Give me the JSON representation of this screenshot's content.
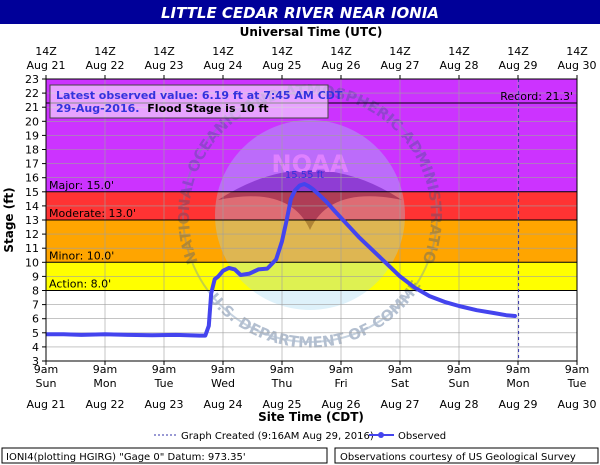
{
  "header": {
    "title": "LITTLE CEDAR RIVER NEAR IONIA",
    "utc_label": "Universal Time (UTC)",
    "bg_color": "#000099",
    "title_color": "#ffffff"
  },
  "info_box": {
    "line1": "Latest observed value: 6.19 ft at 7:45 AM CDT",
    "line2_date": "29-Aug-2016.",
    "line2_rest": "Flood Stage is 10 ft"
  },
  "watermark": {
    "ring_text": "NATIONAL OCEANIC AND ATMOSPHERIC ADMINISTRATION",
    "bottom_text": "U.S. DEPARTMENT OF COMMERCE",
    "center_text": "NOAA"
  },
  "footer": {
    "site_time_label": "Site Time (CDT)",
    "legend_graph_created": "Graph Created (9:16AM Aug 29, 2016)",
    "legend_observed": "Observed",
    "gauge_info": "IONI4(plotting HGIRG) \"Gage 0\" Datum: 973.35'",
    "courtesy": "Observations courtesy of US Geological Survey"
  },
  "chart_data": {
    "type": "line",
    "ylabel": "Stage (ft)",
    "ylim": [
      3,
      23
    ],
    "yticks": [
      "3",
      "4",
      "5",
      "6",
      "7",
      "8",
      "9",
      "10",
      "11",
      "12",
      "13",
      "14",
      "15",
      "16",
      "17",
      "18",
      "19",
      "20",
      "21",
      "22",
      "23"
    ],
    "x_days": [
      0,
      1,
      2,
      3,
      4,
      5,
      6,
      7,
      8,
      9
    ],
    "x_top_ticks": [
      {
        "hour": "14Z",
        "date": "Aug 21"
      },
      {
        "hour": "14Z",
        "date": "Aug 22"
      },
      {
        "hour": "14Z",
        "date": "Aug 23"
      },
      {
        "hour": "14Z",
        "date": "Aug 24"
      },
      {
        "hour": "14Z",
        "date": "Aug 25"
      },
      {
        "hour": "14Z",
        "date": "Aug 26"
      },
      {
        "hour": "14Z",
        "date": "Aug 27"
      },
      {
        "hour": "14Z",
        "date": "Aug 28"
      },
      {
        "hour": "14Z",
        "date": "Aug 29"
      },
      {
        "hour": "14Z",
        "date": "Aug 30"
      }
    ],
    "x_bottom_ticks": [
      {
        "time": "9am",
        "dow": "Sun",
        "date": "Aug 21"
      },
      {
        "time": "9am",
        "dow": "Mon",
        "date": "Aug 22"
      },
      {
        "time": "9am",
        "dow": "Tue",
        "date": "Aug 23"
      },
      {
        "time": "9am",
        "dow": "Wed",
        "date": "Aug 24"
      },
      {
        "time": "9am",
        "dow": "Thu",
        "date": "Aug 25"
      },
      {
        "time": "9am",
        "dow": "Fri",
        "date": "Aug 26"
      },
      {
        "time": "9am",
        "dow": "Sat",
        "date": "Aug 27"
      },
      {
        "time": "9am",
        "dow": "Sun",
        "date": "Aug 28"
      },
      {
        "time": "9am",
        "dow": "Mon",
        "date": "Aug 29"
      },
      {
        "time": "9am",
        "dow": "Tue",
        "date": "Aug 30"
      }
    ],
    "bands": [
      {
        "name": "action",
        "from": 8,
        "to": 10,
        "color": "#ffff00"
      },
      {
        "name": "minor",
        "from": 10,
        "to": 13,
        "color": "#ffa500"
      },
      {
        "name": "moderate",
        "from": 13,
        "to": 15,
        "color": "#ff3333"
      },
      {
        "name": "major",
        "from": 15,
        "to": 23,
        "color": "#cc33ff"
      }
    ],
    "thresholds": [
      {
        "label": "Major: 15.0'",
        "value": 15.0
      },
      {
        "label": "Moderate: 13.0'",
        "value": 13.0
      },
      {
        "label": "Minor: 10.0'",
        "value": 10.0
      },
      {
        "label": "Action: 8.0'",
        "value": 8.0
      }
    ],
    "record": {
      "label": "Record: 21.3'",
      "value": 21.3
    },
    "graph_created_x": 8.01,
    "peak_label": "15.55 ft",
    "series": [
      {
        "name": "Observed",
        "color": "#4444ee",
        "x": [
          0,
          0.3,
          0.6,
          1.0,
          1.4,
          1.8,
          2.2,
          2.6,
          2.7,
          2.76,
          2.8,
          2.86,
          2.92,
          3.0,
          3.1,
          3.2,
          3.3,
          3.45,
          3.6,
          3.75,
          3.9,
          4.0,
          4.08,
          4.15,
          4.22,
          4.3,
          4.38,
          4.45,
          4.52,
          4.6,
          4.75,
          4.9,
          5.1,
          5.3,
          5.5,
          5.75,
          6.0,
          6.25,
          6.5,
          6.75,
          7.0,
          7.3,
          7.6,
          7.8,
          7.95
        ],
        "y": [
          4.9,
          4.9,
          4.85,
          4.9,
          4.85,
          4.82,
          4.85,
          4.8,
          4.8,
          5.5,
          7.8,
          8.8,
          9.0,
          9.4,
          9.6,
          9.5,
          9.1,
          9.2,
          9.5,
          9.55,
          10.2,
          11.5,
          13.0,
          14.5,
          15.1,
          15.45,
          15.55,
          15.4,
          15.2,
          14.9,
          14.3,
          13.6,
          12.7,
          11.8,
          11.0,
          10.0,
          9.0,
          8.2,
          7.6,
          7.2,
          6.9,
          6.6,
          6.4,
          6.25,
          6.19
        ]
      }
    ]
  }
}
